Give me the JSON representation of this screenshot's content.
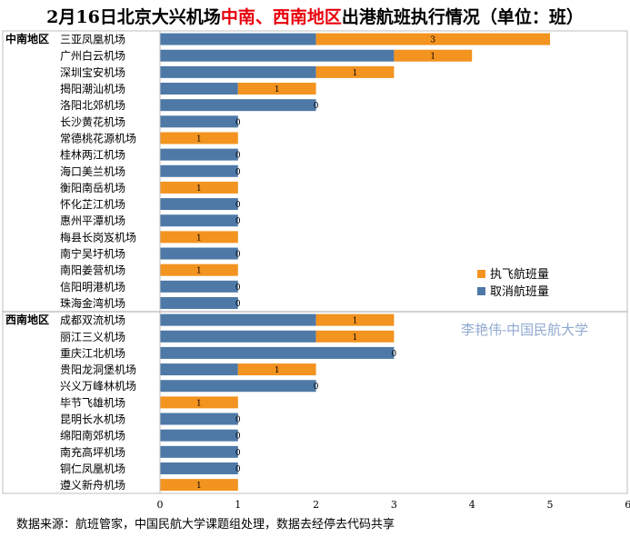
{
  "title": {
    "prefix": "2月16日北京大兴机场",
    "highlight": "中南、西南地区",
    "suffix": "出港航班执行情况（单位：班）"
  },
  "source_note": "数据来源：航班管家，中国民航大学课题组处理，数据去经停去代码共享",
  "watermark": "李艳伟-中国民航大学",
  "colors": {
    "executed": "#f39320",
    "cancelled": "#4e79a7",
    "highlight": "#e8000b"
  },
  "chart_data": {
    "type": "bar",
    "orientation": "horizontal",
    "stacked": true,
    "xlim": [
      0,
      6
    ],
    "xticks": [
      0,
      1,
      2,
      3,
      4,
      5,
      6
    ],
    "legend": {
      "position": "right-middle",
      "items": [
        "执飞航班量",
        "取消航班量"
      ]
    },
    "groups": [
      {
        "name": "中南地区",
        "categories": [
          "三亚凤凰机场",
          "广州白云机场",
          "深圳宝安机场",
          "揭阳潮汕机场",
          "洛阳北郊机场",
          "长沙黄花机场",
          "常德桃花源机场",
          "桂林两江机场",
          "海口美兰机场",
          "衡阳南岳机场",
          "怀化芷江机场",
          "惠州平潭机场",
          "梅县长岗岌机场",
          "南宁吴圩机场",
          "南阳姜营机场",
          "信阳明港机场",
          "珠海金湾机场"
        ],
        "cancelled": [
          2,
          3,
          2,
          1,
          2,
          1,
          0,
          1,
          1,
          0,
          1,
          1,
          0,
          1,
          0,
          1,
          1
        ],
        "executed": [
          3,
          1,
          1,
          1,
          0,
          0,
          1,
          0,
          0,
          1,
          0,
          0,
          1,
          0,
          1,
          0,
          0
        ]
      },
      {
        "name": "西南地区",
        "categories": [
          "成都双流机场",
          "丽江三义机场",
          "重庆江北机场",
          "贵阳龙洞堡机场",
          "兴义万峰林机场",
          "毕节飞雄机场",
          "昆明长水机场",
          "绵阳南郊机场",
          "南充高坪机场",
          "铜仁凤凰机场",
          "遵义新舟机场"
        ],
        "cancelled": [
          2,
          2,
          3,
          1,
          2,
          0,
          1,
          1,
          1,
          1,
          0
        ],
        "executed": [
          1,
          1,
          0,
          1,
          0,
          1,
          0,
          0,
          0,
          0,
          1
        ]
      }
    ]
  }
}
